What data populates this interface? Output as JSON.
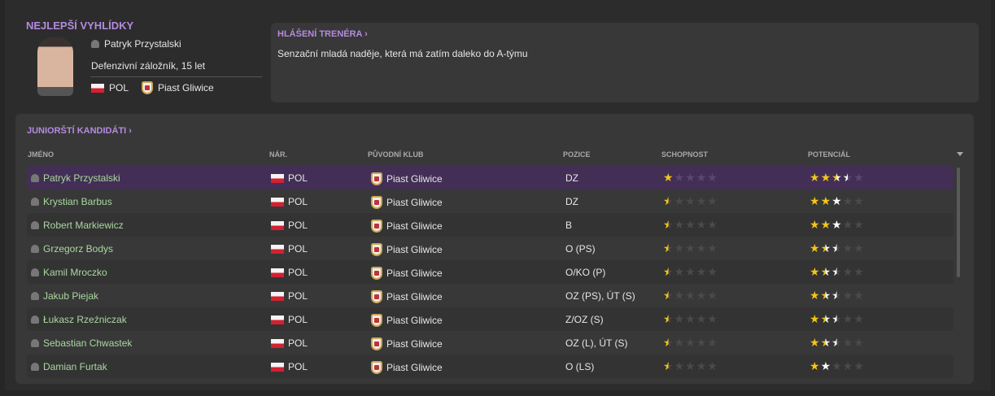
{
  "best_prospects": {
    "title": "NEJLEPŠÍ VYHLÍDKY",
    "name": "Patryk Przystalski",
    "position_age": "Defenzivní záložník, 15 let",
    "nation": "POL",
    "club": "Piast Gliwice"
  },
  "coach_report": {
    "title": "HLÁŠENÍ TRENÉRA ›",
    "text": "Senzační mladá naděje, která má zatím daleko do A-týmu"
  },
  "candidates": {
    "title": "JUNIORŠTÍ KANDIDÁTI ›",
    "columns": [
      "JMÉNO",
      "NÁR.",
      "PŮVODNÍ KLUB",
      "POZICE",
      "SCHOPNOST",
      "POTENCIÁL"
    ],
    "rows": [
      {
        "name": "Patryk Przystalski",
        "nat": "POL",
        "club": "Piast Gliwice",
        "pos": "DZ",
        "ability": 1,
        "pot_min": 2.5,
        "pot_max": 3.5
      },
      {
        "name": "Krystian Barbus",
        "nat": "POL",
        "club": "Piast Gliwice",
        "pos": "DZ",
        "ability": 0.5,
        "pot_min": 2,
        "pot_max": 3
      },
      {
        "name": "Robert Markiewicz",
        "nat": "POL",
        "club": "Piast Gliwice",
        "pos": "B",
        "ability": 0.5,
        "pot_min": 2,
        "pot_max": 3
      },
      {
        "name": "Grzegorz Bodys",
        "nat": "POL",
        "club": "Piast Gliwice",
        "pos": "O (PS)",
        "ability": 0.5,
        "pot_min": 1.5,
        "pot_max": 2.5
      },
      {
        "name": "Kamil Mroczko",
        "nat": "POL",
        "club": "Piast Gliwice",
        "pos": "O/KO (P)",
        "ability": 0.5,
        "pot_min": 1.5,
        "pot_max": 2.5
      },
      {
        "name": "Jakub Piejak",
        "nat": "POL",
        "club": "Piast Gliwice",
        "pos": "OZ (PS), ÚT (S)",
        "ability": 0.5,
        "pot_min": 1.5,
        "pot_max": 2.5
      },
      {
        "name": "Łukasz Rzeźniczak",
        "nat": "POL",
        "club": "Piast Gliwice",
        "pos": "Z/OZ (S)",
        "ability": 0.5,
        "pot_min": 1.5,
        "pot_max": 2.5
      },
      {
        "name": "Sebastian Chwastek",
        "nat": "POL",
        "club": "Piast Gliwice",
        "pos": "OZ (L), ÚT (S)",
        "ability": 0.5,
        "pot_min": 1.5,
        "pot_max": 2.5
      },
      {
        "name": "Damian Furtak",
        "nat": "POL",
        "club": "Piast Gliwice",
        "pos": "O (LS)",
        "ability": 0.5,
        "pot_min": 1,
        "pot_max": 2
      }
    ]
  },
  "colors": {
    "accent": "#b48be0",
    "gold": "#f5c518",
    "selected_row": "#432f56"
  }
}
